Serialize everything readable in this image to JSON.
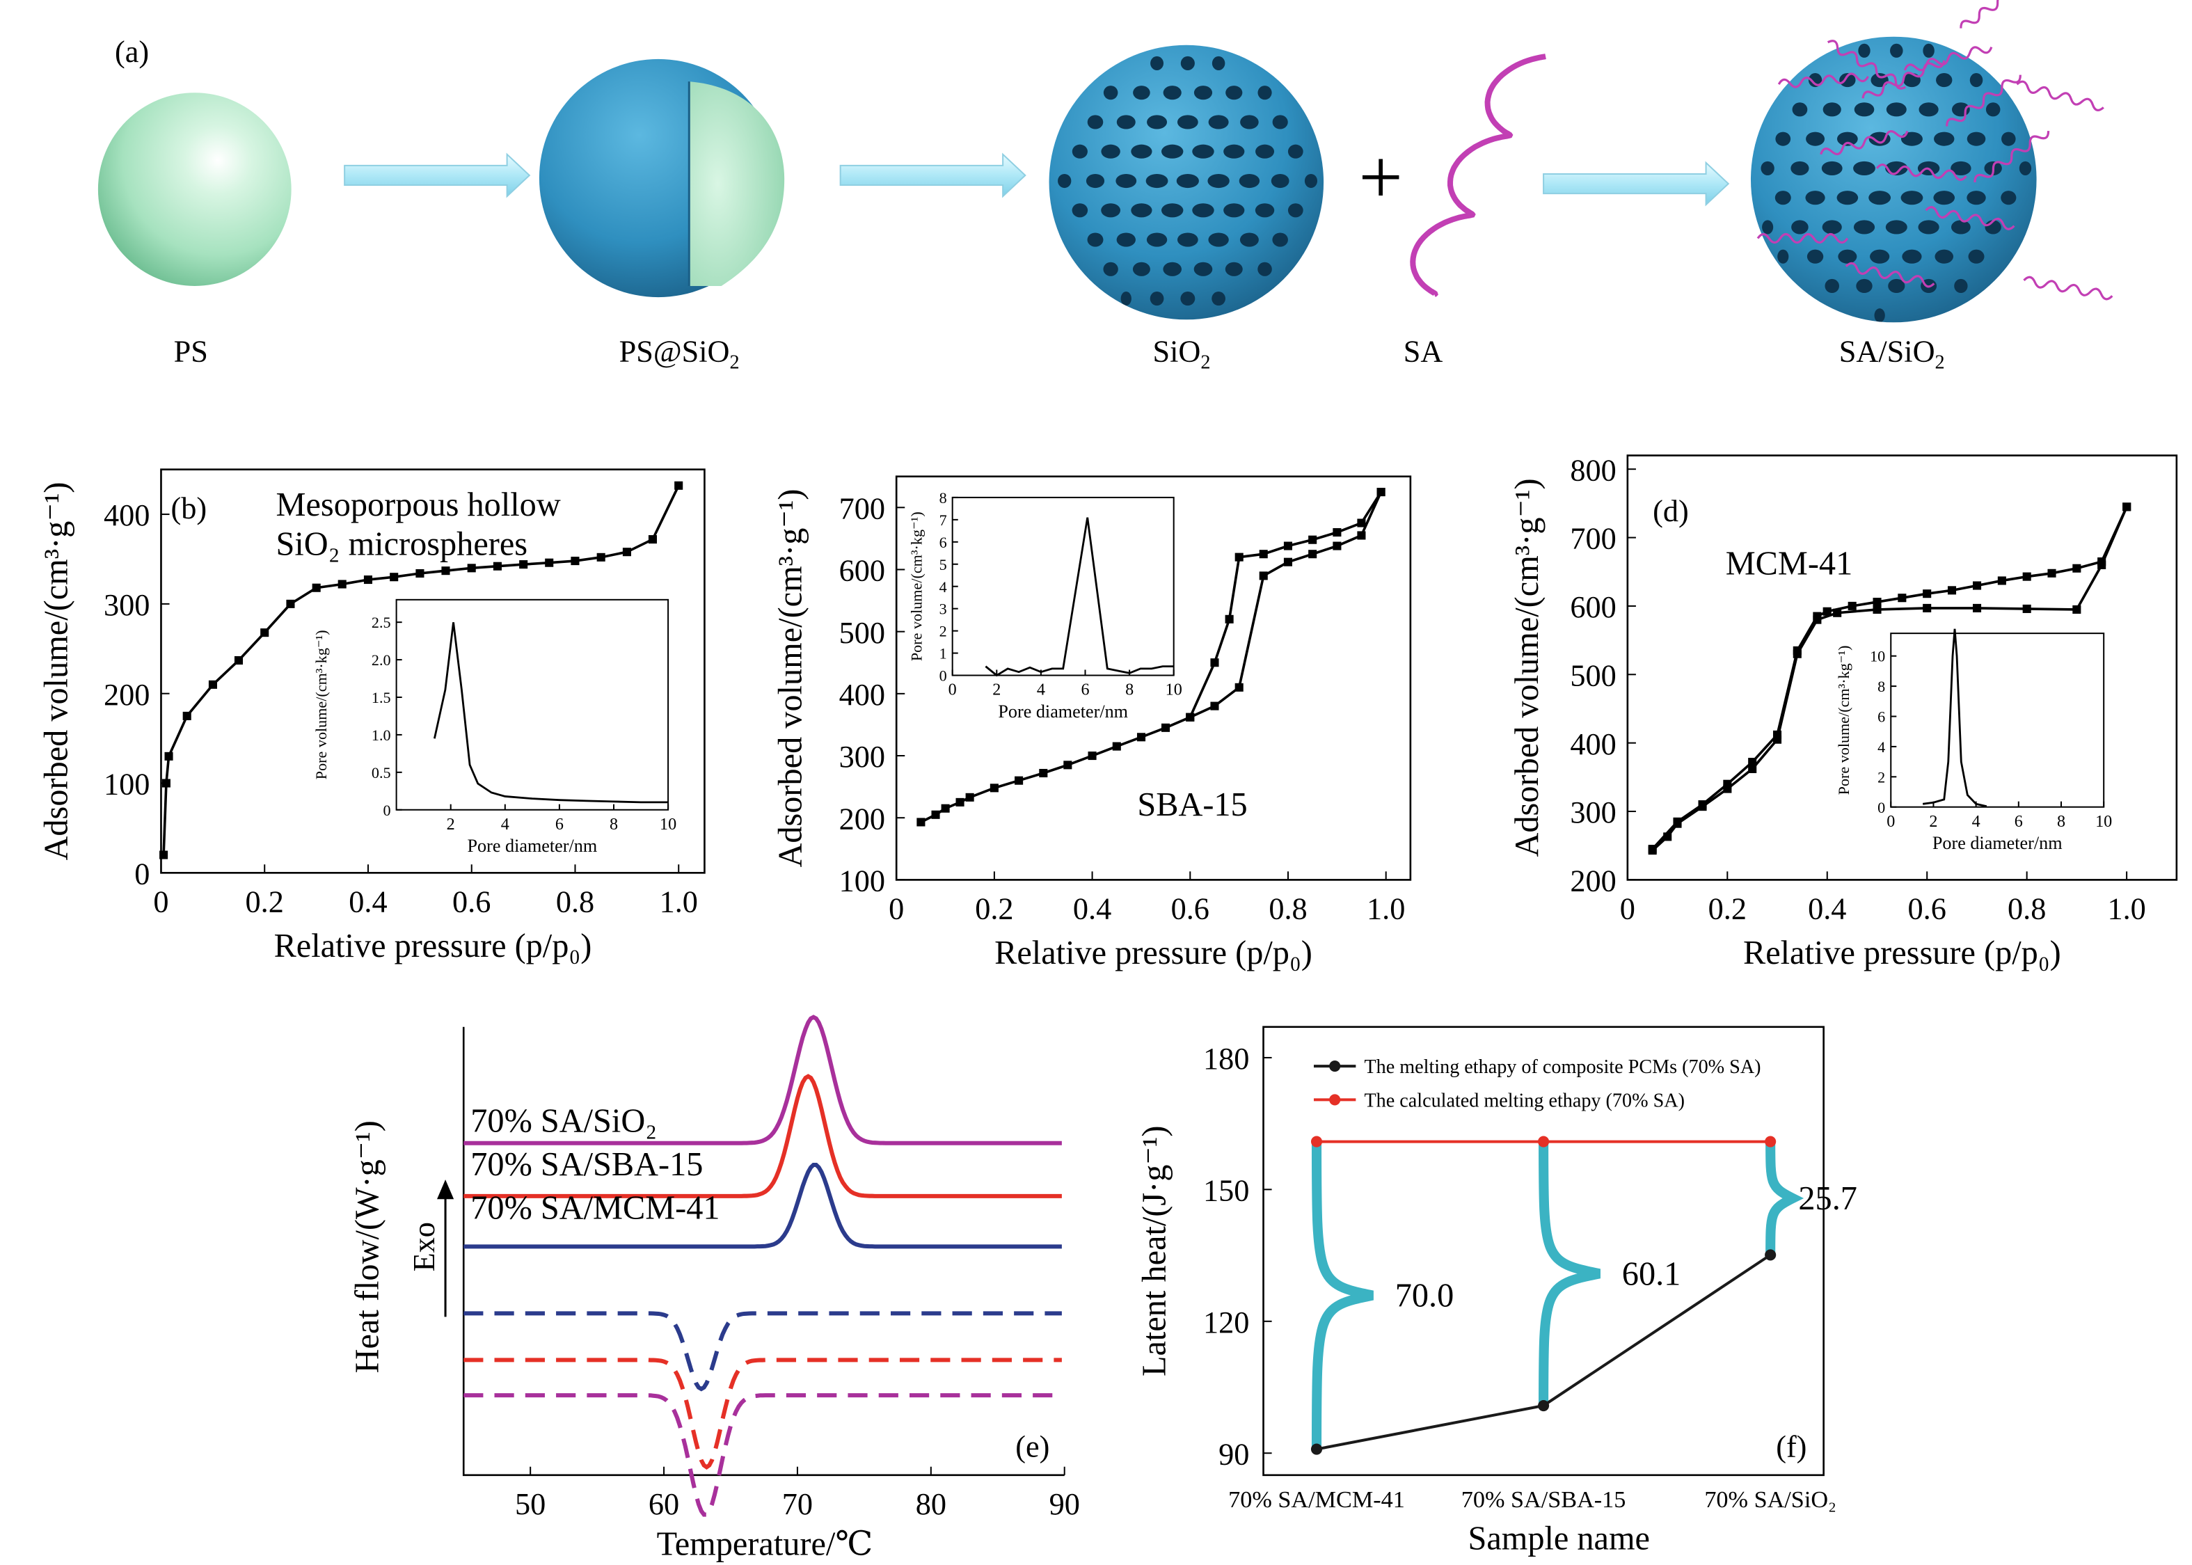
{
  "panel_a": {
    "tag": "(a)",
    "labels": {
      "ps": "PS",
      "ps_sio2": "PS@SiO",
      "ps_sio2_sub": "2",
      "sio2": "SiO",
      "sio2_sub": "2",
      "sa": "SA",
      "sa_sio2": "SA/SiO",
      "sa_sio2_sub": "2",
      "plus": "+"
    }
  },
  "chart_data": [
    {
      "id": "b",
      "type": "line",
      "tag": "(b)",
      "annotation": [
        "Mesoporpous hollow",
        "SiO₂ microspheres"
      ],
      "xlabel": "Relative pressure (p/p₀)",
      "ylabel": "Adsorbed volume/(cm³·g⁻¹)",
      "xlim": [
        0,
        1.05
      ],
      "ylim": [
        0,
        450
      ],
      "xticks": [
        "0",
        "0.2",
        "0.4",
        "0.6",
        "0.8",
        "1.0"
      ],
      "yticks": [
        "0",
        "100",
        "200",
        "300",
        "400"
      ],
      "series": [
        {
          "x": [
            0.005,
            0.01,
            0.015,
            0.05,
            0.1,
            0.15,
            0.2,
            0.25,
            0.3,
            0.35,
            0.4,
            0.45,
            0.5,
            0.55,
            0.6,
            0.65,
            0.7,
            0.75,
            0.8,
            0.85,
            0.9,
            0.95,
            1.0
          ],
          "y": [
            20,
            100,
            130,
            175,
            210,
            237,
            268,
            300,
            318,
            322,
            327,
            330,
            334,
            337,
            340,
            342,
            344,
            346,
            348,
            352,
            358,
            372,
            432
          ]
        }
      ],
      "inset": {
        "xlabel": "Pore diameter/nm",
        "ylabel": "Pore volume/(cm³·kg⁻¹)",
        "xlim": [
          0,
          10
        ],
        "ylim": [
          0,
          2.8
        ],
        "xticks": [
          "2",
          "4",
          "6",
          "8",
          "10"
        ],
        "yticks": [
          "0",
          "0.5",
          "1.0",
          "1.5",
          "2.0",
          "2.5"
        ],
        "x": [
          1.4,
          1.8,
          2.1,
          2.4,
          2.7,
          3.0,
          3.5,
          4.0,
          5.0,
          6.0,
          7.0,
          8.0,
          9.0,
          10.0
        ],
        "y": [
          0.95,
          1.6,
          2.5,
          1.6,
          0.6,
          0.35,
          0.23,
          0.18,
          0.15,
          0.13,
          0.12,
          0.11,
          0.1,
          0.1
        ]
      }
    },
    {
      "id": "c",
      "type": "line",
      "tag": "(c)",
      "annotation": [
        "SBA-15"
      ],
      "xlabel": "Relative pressure (p/p₀)",
      "ylabel": "Adsorbed volume/(cm³·g⁻¹)",
      "xlim": [
        0,
        1.05
      ],
      "ylim": [
        100,
        750
      ],
      "xticks": [
        "0",
        "0.2",
        "0.4",
        "0.6",
        "0.8",
        "1.0"
      ],
      "yticks": [
        "100",
        "200",
        "300",
        "400",
        "500",
        "600",
        "700"
      ],
      "series": [
        {
          "name": "adsorption",
          "x": [
            0.05,
            0.08,
            0.1,
            0.13,
            0.15,
            0.2,
            0.25,
            0.3,
            0.35,
            0.4,
            0.45,
            0.5,
            0.55,
            0.6,
            0.65,
            0.7,
            0.75,
            0.8,
            0.85,
            0.9,
            0.95,
            0.99
          ],
          "y": [
            193,
            205,
            215,
            225,
            233,
            248,
            260,
            272,
            285,
            300,
            315,
            330,
            345,
            362,
            380,
            410,
            590,
            612,
            625,
            638,
            655,
            725
          ]
        },
        {
          "name": "desorption",
          "x": [
            0.99,
            0.95,
            0.9,
            0.85,
            0.8,
            0.75,
            0.7,
            0.68,
            0.65,
            0.6
          ],
          "y": [
            725,
            675,
            660,
            648,
            638,
            625,
            620,
            520,
            450,
            362
          ]
        }
      ],
      "inset": {
        "xlabel": "Pore diameter/nm",
        "ylabel": "Pore volume/(cm³·kg⁻¹)",
        "xlim": [
          0,
          10
        ],
        "ylim": [
          0,
          8
        ],
        "xticks": [
          "0",
          "2",
          "4",
          "6",
          "8",
          "10"
        ],
        "yticks": [
          "0",
          "1",
          "2",
          "3",
          "4",
          "5",
          "6",
          "7",
          "8"
        ],
        "x": [
          1.5,
          2.0,
          2.5,
          3.0,
          3.5,
          4.0,
          4.5,
          5.0,
          6.1,
          7.0,
          7.5,
          8.0,
          8.5,
          9.0,
          9.5,
          10.0
        ],
        "y": [
          0.4,
          0.0,
          0.3,
          0.15,
          0.35,
          0.15,
          0.3,
          0.3,
          7.1,
          0.3,
          0.2,
          0.1,
          0.3,
          0.3,
          0.4,
          0.4
        ]
      }
    },
    {
      "id": "d",
      "type": "line",
      "tag": "(d)",
      "annotation": [
        "MCM-41"
      ],
      "xlabel": "Relative pressure (p/p₀)",
      "ylabel": "Adsorbed volume/(cm³·g⁻¹)",
      "xlim": [
        0,
        1.1
      ],
      "ylim": [
        200,
        820
      ],
      "xticks": [
        "0",
        "0.2",
        "0.4",
        "0.6",
        "0.8",
        "1.0"
      ],
      "yticks": [
        "200",
        "300",
        "400",
        "500",
        "600",
        "700",
        "800"
      ],
      "series": [
        {
          "name": "adsorption",
          "x": [
            0.05,
            0.08,
            0.1,
            0.15,
            0.2,
            0.25,
            0.3,
            0.34,
            0.38,
            0.42,
            0.5,
            0.6,
            0.7,
            0.8,
            0.9,
            0.95,
            1.0
          ],
          "y": [
            243,
            263,
            282,
            307,
            333,
            362,
            405,
            530,
            580,
            590,
            595,
            597,
            597,
            596,
            595,
            660,
            745
          ]
        },
        {
          "name": "desorption",
          "x": [
            1.0,
            0.95,
            0.9,
            0.85,
            0.8,
            0.75,
            0.7,
            0.65,
            0.6,
            0.55,
            0.5,
            0.45,
            0.4,
            0.38,
            0.34,
            0.3,
            0.25,
            0.2,
            0.15,
            0.1,
            0.05
          ],
          "y": [
            745,
            665,
            655,
            648,
            643,
            637,
            630,
            623,
            618,
            612,
            606,
            600,
            592,
            585,
            535,
            412,
            372,
            340,
            310,
            285,
            245
          ]
        }
      ],
      "inset": {
        "xlabel": "Pore diameter/nm",
        "ylabel": "Pore volume/(cm³·kg⁻¹)",
        "xlim": [
          0,
          10
        ],
        "ylim": [
          0,
          11.5
        ],
        "xticks": [
          "0",
          "2",
          "4",
          "6",
          "8",
          "10"
        ],
        "yticks": [
          "0",
          "2",
          "4",
          "6",
          "8",
          "10"
        ],
        "x": [
          1.5,
          2.0,
          2.5,
          2.7,
          2.9,
          3.0,
          3.1,
          3.3,
          3.6,
          4.0,
          4.5
        ],
        "y": [
          0.2,
          0.3,
          0.5,
          3.0,
          10.0,
          11.8,
          10.0,
          3.0,
          0.8,
          0.2,
          0.05
        ]
      }
    },
    {
      "id": "e",
      "type": "line",
      "tag": "(e)",
      "xlabel": "Temperature/℃",
      "ylabel": "Heat flow/(W·g⁻¹)",
      "exo_label": "Exo",
      "xlim": [
        45,
        90
      ],
      "xticks": [
        "50",
        "60",
        "70",
        "80",
        "90"
      ],
      "colors": {
        "SiO2": "#a8309b",
        "SBA15": "#e53026",
        "MCM41": "#2b3b8c"
      },
      "series": [
        {
          "name": "70% SA/SiO₂",
          "color": "#a8309b",
          "baseline": 0,
          "peak_x": 71.2,
          "amplitude": 1.0,
          "width": 1.35,
          "dashed": false
        },
        {
          "name": "70% SA/SBA-15",
          "color": "#e53026",
          "baseline": -0.42,
          "peak_x": 70.8,
          "amplitude": 0.95,
          "width": 1.25,
          "dashed": false
        },
        {
          "name": "70% SA/MCM-41",
          "color": "#2b3b8c",
          "baseline": -0.82,
          "peak_x": 71.3,
          "amplitude": 0.65,
          "width": 1.15,
          "dashed": false
        },
        {
          "name": "MCM-41 cooling",
          "color": "#2b3b8c",
          "baseline": -1.35,
          "peak_x": 62.8,
          "amplitude": -0.6,
          "width": 1.0,
          "dashed": true
        },
        {
          "name": "SBA-15 cooling",
          "color": "#e53026",
          "baseline": -1.72,
          "peak_x": 63.2,
          "amplitude": -0.85,
          "width": 1.1,
          "dashed": true
        },
        {
          "name": "SiO₂ cooling",
          "color": "#a8309b",
          "baseline": -2.0,
          "peak_x": 63.1,
          "amplitude": -0.95,
          "width": 1.15,
          "dashed": true
        }
      ],
      "legend_labels": [
        "70% SA/SiO₂",
        "70% SA/SBA-15",
        "70% SA/MCM-41"
      ]
    },
    {
      "id": "f",
      "type": "line",
      "tag": "(f)",
      "xlabel": "Sample name",
      "ylabel": "Latent heat/(J·g⁻¹)",
      "ylim": [
        85,
        187
      ],
      "yticks": [
        "90",
        "120",
        "150",
        "180"
      ],
      "categories": [
        "70% SA/MCM-41",
        "70% SA/SBA-15",
        "70% SA/SiO₂"
      ],
      "series": [
        {
          "name": "The melting ethapy of composite PCMs (70% SA)",
          "color": "#1a1a1a",
          "values": [
            90.9,
            100.8,
            135.1
          ]
        },
        {
          "name": "The calculated melting ethapy (70% SA)",
          "color": "#e53026",
          "values": [
            160.9,
            160.9,
            160.9
          ]
        }
      ],
      "differences": [
        "70.0",
        "60.1",
        "25.7"
      ],
      "brace_color": "#3bb3c3"
    }
  ]
}
